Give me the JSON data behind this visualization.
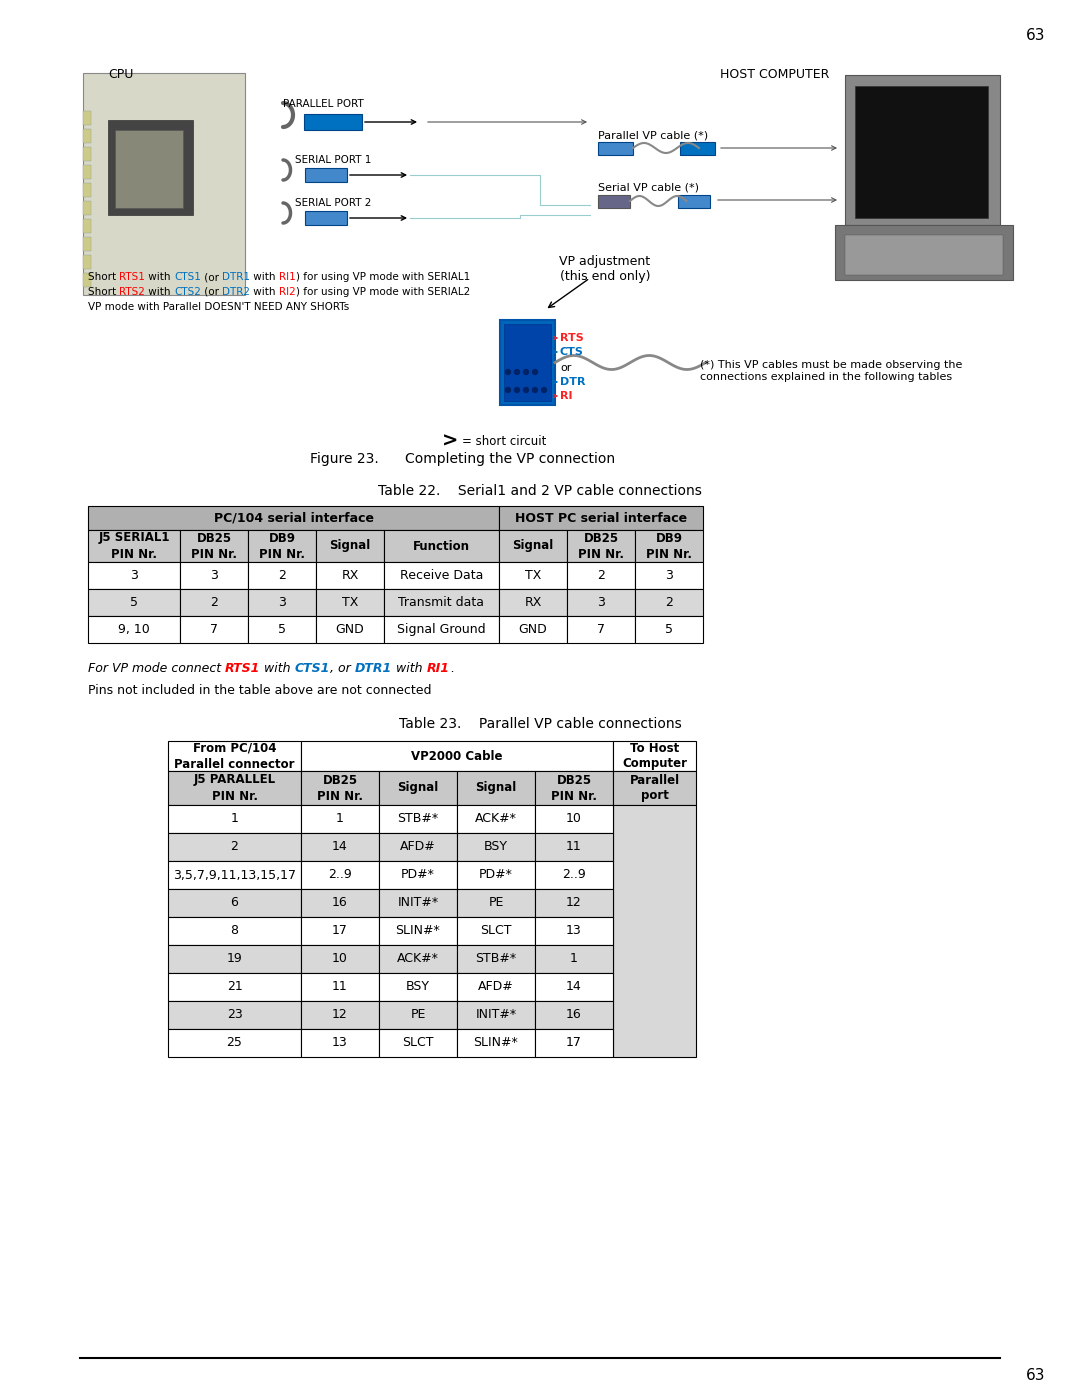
{
  "page_number": "63",
  "background_color": "#ffffff",
  "figure_caption": "Figure 23.      Completing the VP connection",
  "table22_title": "Table 22.    Serial1 and 2 VP cable connections",
  "table23_title": "Table 23.    Parallel VP cable connections",
  "vp_note_parts": [
    {
      "text": "For VP mode connect ",
      "color": "#000000",
      "bold": false
    },
    {
      "text": "RTS1",
      "color": "#ff0000",
      "bold": true
    },
    {
      "text": " with ",
      "color": "#000000",
      "bold": false
    },
    {
      "text": "CTS1",
      "color": "#0070c0",
      "bold": true
    },
    {
      "text": ", or ",
      "color": "#000000",
      "bold": false
    },
    {
      "text": "DTR1",
      "color": "#0070c0",
      "bold": true
    },
    {
      "text": " with ",
      "color": "#000000",
      "bold": false
    },
    {
      "text": "RI1",
      "color": "#ff0000",
      "bold": true
    },
    {
      "text": ".",
      "color": "#000000",
      "bold": false
    }
  ],
  "pins_note": "Pins not included in the table above are not connected",
  "short_note_line1_parts": [
    {
      "text": "Short ",
      "color": "#000000"
    },
    {
      "text": "RTS1",
      "color": "#ff0000"
    },
    {
      "text": " with ",
      "color": "#000000"
    },
    {
      "text": "CTS1",
      "color": "#0070c0"
    },
    {
      "text": " (or ",
      "color": "#000000"
    },
    {
      "text": "DTR1",
      "color": "#0070c0"
    },
    {
      "text": " with ",
      "color": "#000000"
    },
    {
      "text": "RI1",
      "color": "#ff0000"
    },
    {
      "text": ") for using VP mode with SERIAL1",
      "color": "#000000"
    }
  ],
  "short_note_line2_parts": [
    {
      "text": "Short ",
      "color": "#000000"
    },
    {
      "text": "RTS2",
      "color": "#ff0000"
    },
    {
      "text": " with ",
      "color": "#000000"
    },
    {
      "text": "CTS2",
      "color": "#0070c0"
    },
    {
      "text": " (or ",
      "color": "#000000"
    },
    {
      "text": "DTR2",
      "color": "#0070c0"
    },
    {
      "text": " with ",
      "color": "#000000"
    },
    {
      "text": "RI2",
      "color": "#ff0000"
    },
    {
      "text": ") for using VP mode with SERIAL2",
      "color": "#000000"
    }
  ],
  "short_note_line3": "VP mode with Parallel DOESN'T NEED ANY SHORTs",
  "table22_header1": "PC/104 serial interface",
  "table22_header2": "HOST PC serial interface",
  "table22_col_headers": [
    "J5 SERIAL1\nPIN Nr.",
    "DB25\nPIN Nr.",
    "DB9\nPIN Nr.",
    "Signal",
    "Function",
    "Signal",
    "DB25\nPIN Nr.",
    "DB9\nPIN Nr."
  ],
  "table22_rows": [
    [
      "3",
      "3",
      "2",
      "RX",
      "Receive Data",
      "TX",
      "2",
      "3"
    ],
    [
      "5",
      "2",
      "3",
      "TX",
      "Transmit data",
      "RX",
      "3",
      "2"
    ],
    [
      "9, 10",
      "7",
      "5",
      "GND",
      "Signal Ground",
      "GND",
      "7",
      "5"
    ]
  ],
  "table22_row_shading": [
    false,
    true,
    false
  ],
  "table23_col_headers_row2": [
    "J5 PARALLEL\nPIN Nr.",
    "DB25\nPIN Nr.",
    "Signal",
    "Signal",
    "DB25\nPIN Nr.",
    "Parallel\nport"
  ],
  "table23_rows": [
    [
      "1",
      "1",
      "STB#*",
      "ACK#*",
      "10"
    ],
    [
      "2",
      "14",
      "AFD#",
      "BSY",
      "11"
    ],
    [
      "3,5,7,9,11,13,15,17",
      "2..9",
      "PD#*",
      "PD#*",
      "2..9"
    ],
    [
      "6",
      "16",
      "INIT#*",
      "PE",
      "12"
    ],
    [
      "8",
      "17",
      "SLIN#*",
      "SLCT",
      "13"
    ],
    [
      "19",
      "10",
      "ACK#*",
      "STB#*",
      "1"
    ],
    [
      "21",
      "11",
      "BSY",
      "AFD#",
      "14"
    ],
    [
      "23",
      "12",
      "PE",
      "INIT#*",
      "16"
    ],
    [
      "25",
      "13",
      "SLCT",
      "SLIN#*",
      "17"
    ]
  ],
  "table23_row_shading": [
    false,
    true,
    false,
    true,
    false,
    true,
    false,
    true,
    false
  ],
  "header_bg": "#c8c8c8",
  "subheader_bg": "#b0b0b0",
  "shaded_row_bg": "#d8d8d8",
  "white_row_bg": "#ffffff",
  "cpu_label": "CPU",
  "host_label": "HOST COMPUTER",
  "parallel_port_label": "PARALLEL PORT",
  "serial1_label": "SERIAL PORT 1",
  "serial2_label": "SERIAL PORT 2",
  "parallel_cable_label": "Parallel VP cable (*)",
  "serial_cable_label": "Serial VP cable (*)",
  "vp_adj_label": "VP adjustment\n(this end only)",
  "short_circuit_label": "= short circuit",
  "footnote_label": "(*) This VP cables must be made observing the\nconnections explained in the following tables"
}
